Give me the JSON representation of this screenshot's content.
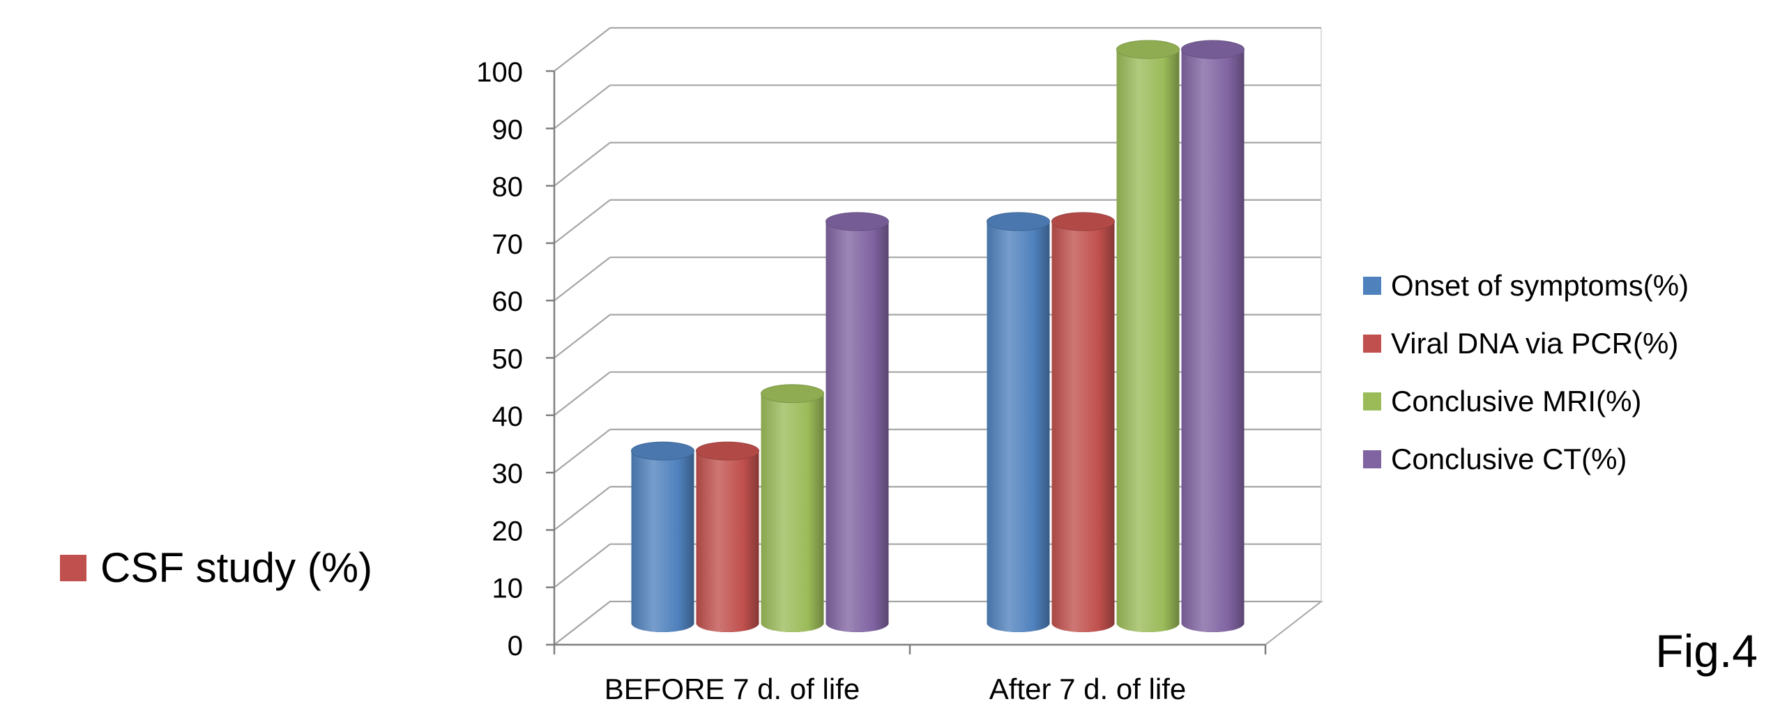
{
  "chart_data": {
    "type": "bar",
    "categories": [
      "BEFORE 7 d. of life",
      "After 7 d. of life"
    ],
    "series": [
      {
        "name": "Onset of symptoms(%)",
        "values": [
          30,
          70
        ],
        "color": "#4f81bd"
      },
      {
        "name": "Viral DNA via PCR(%)",
        "values": [
          30,
          70
        ],
        "color": "#c0504d"
      },
      {
        "name": "Conclusive MRI(%)",
        "values": [
          40,
          100
        ],
        "color": "#9bbb59"
      },
      {
        "name": "Conclusive CT(%)",
        "values": [
          70,
          100
        ],
        "color": "#8064a2"
      }
    ],
    "ylim": [
      0,
      100
    ],
    "yticks": [
      "0",
      "10",
      "20",
      "30",
      "40",
      "50",
      "60",
      "70",
      "80",
      "90",
      "100"
    ],
    "grid": true,
    "legend_position": "right",
    "style": "3d-cylinder"
  },
  "side_legend": {
    "label": "CSF study (%)",
    "color": "#c0504d"
  },
  "figure_label": "Fig.4"
}
